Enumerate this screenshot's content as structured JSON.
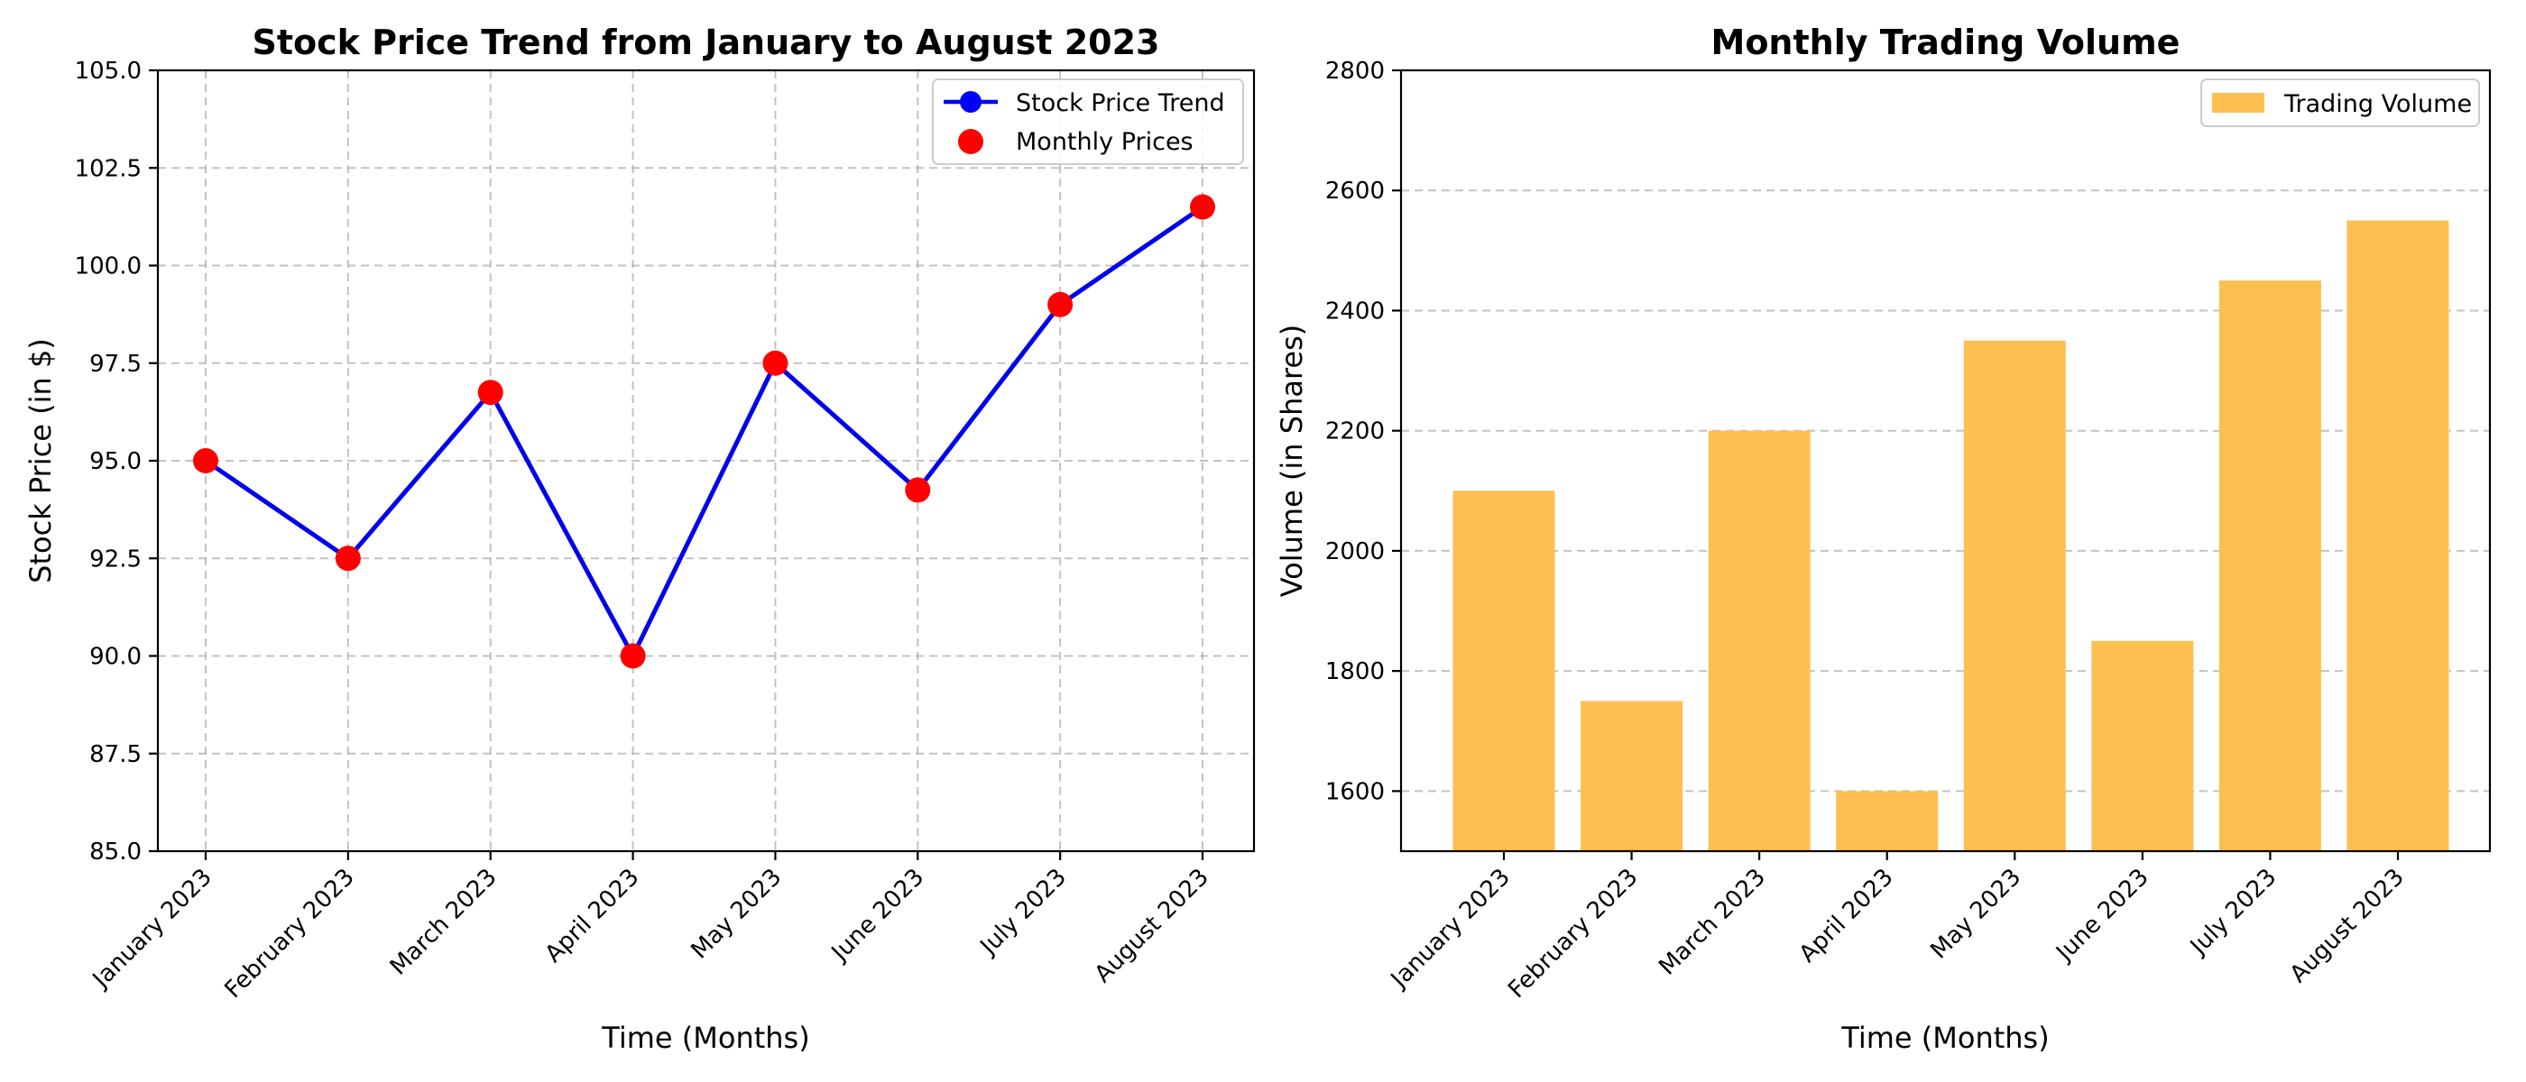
{
  "chart_data": [
    {
      "type": "line",
      "title": "Stock Price Trend from January to August 2023",
      "xlabel": "Time (Months)",
      "ylabel": "Stock Price (in $)",
      "categories": [
        "January 2023",
        "February 2023",
        "March 2023",
        "April 2023",
        "May 2023",
        "June 2023",
        "July 2023",
        "August 2023"
      ],
      "series": [
        {
          "name": "Stock Price Trend",
          "type": "line",
          "color": "#0000ee",
          "marker_color": "#0000ff",
          "values": [
            95.0,
            92.5,
            96.75,
            90.0,
            97.5,
            94.25,
            99.0,
            101.5
          ]
        },
        {
          "name": "Monthly Prices",
          "type": "scatter",
          "color": "#ff0000",
          "values": [
            95.0,
            92.5,
            96.75,
            90.0,
            97.5,
            94.25,
            99.0,
            101.5
          ]
        }
      ],
      "ylim": [
        85.0,
        105.0
      ],
      "yticks": [
        "85.0",
        "87.5",
        "90.0",
        "92.5",
        "95.0",
        "97.5",
        "100.0",
        "102.5",
        "105.0"
      ],
      "grid": true,
      "legend": "upper-right"
    },
    {
      "type": "bar",
      "title": "Monthly Trading Volume",
      "xlabel": "Time (Months)",
      "ylabel": "Volume (in Shares)",
      "categories": [
        "January 2023",
        "February 2023",
        "March 2023",
        "April 2023",
        "May 2023",
        "June 2023",
        "July 2023",
        "August 2023"
      ],
      "series": [
        {
          "name": "Trading Volume",
          "color": "#fdbf4f",
          "values": [
            2100,
            1750,
            2200,
            1600,
            2350,
            1850,
            2450,
            2550
          ]
        }
      ],
      "ylim": [
        1500,
        2800
      ],
      "yticks": [
        "1600",
        "1800",
        "2000",
        "2200",
        "2400",
        "2600",
        "2800"
      ],
      "grid": true,
      "legend": "upper-right"
    }
  ]
}
